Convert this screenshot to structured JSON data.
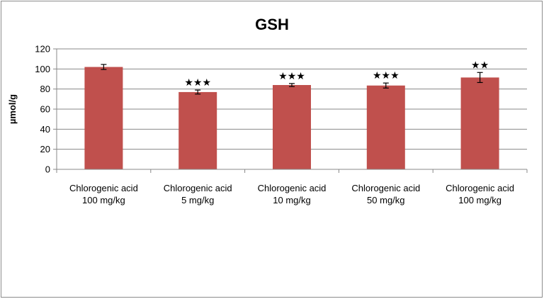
{
  "chart_data": {
    "type": "bar",
    "title": "GSH",
    "xlabel": "",
    "ylabel": "µmol/g",
    "ylim": [
      0,
      120
    ],
    "yticks": [
      0,
      20,
      40,
      60,
      80,
      100,
      120
    ],
    "grid": true,
    "categories": [
      [
        "Chlorogenic acid",
        "100 mg/kg"
      ],
      [
        "Chlorogenic acid",
        "5 mg/kg"
      ],
      [
        "Chlorogenic acid",
        "10 mg/kg"
      ],
      [
        "Chlorogenic acid",
        "50 mg/kg"
      ],
      [
        "Chlorogenic acid",
        "100 mg/kg"
      ]
    ],
    "values": [
      102,
      77,
      84,
      83.5,
      91.5
    ],
    "errors": [
      2.5,
      2,
      1.5,
      2.5,
      5
    ],
    "significance": [
      "",
      "★★★",
      "★★★",
      "★★★",
      "★★"
    ],
    "colors": {
      "bar": "#c0504d",
      "grid": "#888888",
      "axis": "#888888"
    }
  }
}
